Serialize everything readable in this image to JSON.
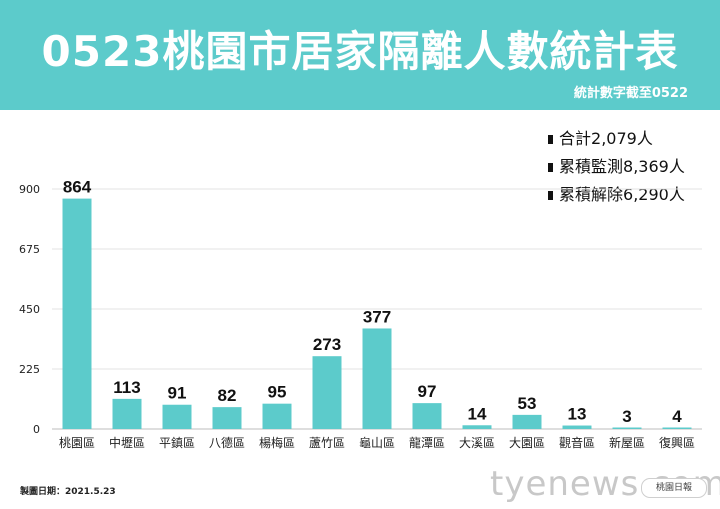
{
  "header": {
    "title": "0523桃園市居家隔離人數統計表",
    "subtitle": "統計數字截至0522"
  },
  "summary": [
    {
      "label": "合計",
      "value": "2,079",
      "unit": "人"
    },
    {
      "label": "累積監測",
      "value": "8,369",
      "unit": "人"
    },
    {
      "label": "累積解除",
      "value": "6,290",
      "unit": "人"
    }
  ],
  "footer": {
    "date": "製圖日期：2021.5.23",
    "watermark": "tyenews.com",
    "logo_text": "桃園日報"
  },
  "colors": {
    "header_bg": "#5ccbcb",
    "bar": "#5ccbcb"
  },
  "chart_data": {
    "type": "bar",
    "title": "0523桃園市居家隔離人數統計表",
    "xlabel": "",
    "ylabel": "",
    "ylim": [
      0,
      900
    ],
    "yticks": [
      0,
      225,
      450,
      675,
      900
    ],
    "grid": true,
    "categories": [
      "桃園區",
      "中壢區",
      "平鎮區",
      "八德區",
      "楊梅區",
      "蘆竹區",
      "龜山區",
      "龍潭區",
      "大溪區",
      "大園區",
      "觀音區",
      "新屋區",
      "復興區"
    ],
    "values": [
      864,
      113,
      91,
      82,
      95,
      273,
      377,
      97,
      14,
      53,
      13,
      3,
      4
    ]
  }
}
